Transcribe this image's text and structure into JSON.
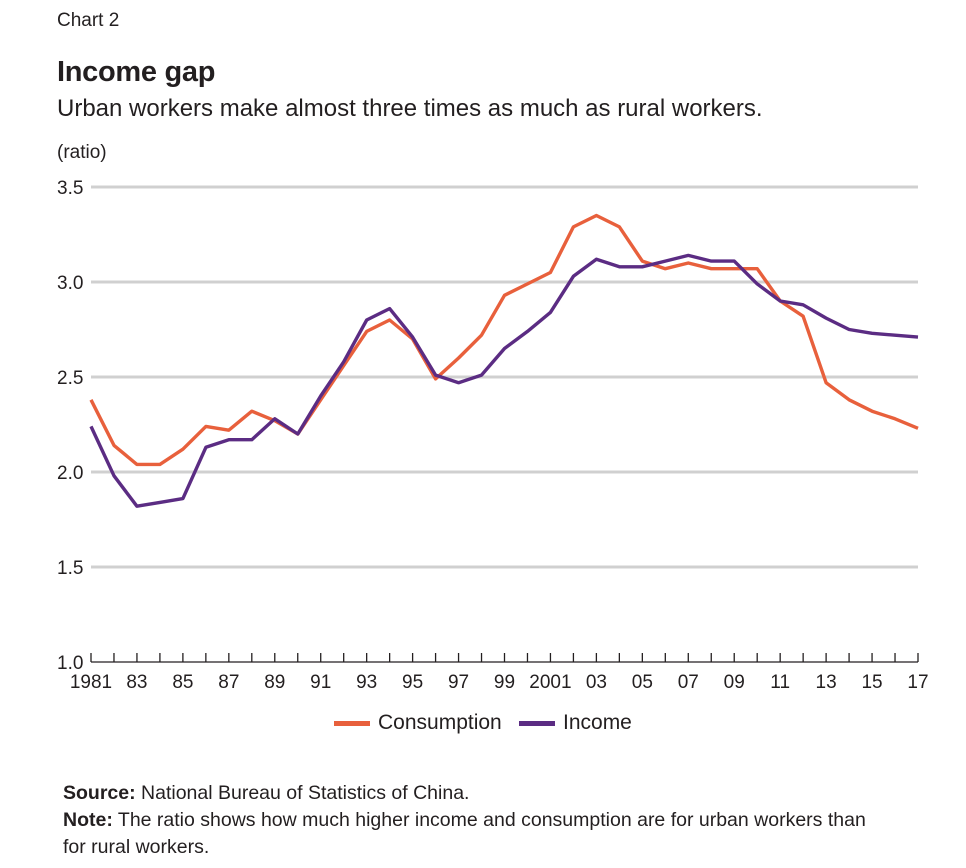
{
  "header": {
    "chart_label": "Chart 2",
    "title": "Income gap",
    "subtitle": "Urban workers make almost three times as much as rural workers.",
    "unit": "(ratio)"
  },
  "colors": {
    "consumption": "#e8603c",
    "income": "#5b2c83",
    "grid": "#d0d0d0",
    "text": "#231f20"
  },
  "chart_data": {
    "type": "line",
    "title": "Income gap",
    "ylabel": "(ratio)",
    "ylim": [
      1.0,
      3.5
    ],
    "yticks": [
      1.0,
      1.5,
      2.0,
      2.5,
      3.0,
      3.5
    ],
    "ytick_labels": [
      "1.0",
      "1.5",
      "2.0",
      "2.5",
      "3.0",
      "3.5"
    ],
    "grid": true,
    "legend_position": "bottom-center",
    "x": [
      1981,
      1982,
      1983,
      1984,
      1985,
      1986,
      1987,
      1988,
      1989,
      1990,
      1991,
      1992,
      1993,
      1994,
      1995,
      1996,
      1997,
      1998,
      1999,
      2000,
      2001,
      2002,
      2003,
      2004,
      2005,
      2006,
      2007,
      2008,
      2009,
      2010,
      2011,
      2012,
      2013,
      2014,
      2015,
      2016,
      2017
    ],
    "xtick_labels": [
      {
        "year": 1981,
        "label": "1981"
      },
      {
        "year": 1983,
        "label": "83"
      },
      {
        "year": 1985,
        "label": "85"
      },
      {
        "year": 1987,
        "label": "87"
      },
      {
        "year": 1989,
        "label": "89"
      },
      {
        "year": 1991,
        "label": "91"
      },
      {
        "year": 1993,
        "label": "93"
      },
      {
        "year": 1995,
        "label": "95"
      },
      {
        "year": 1997,
        "label": "97"
      },
      {
        "year": 1999,
        "label": "99"
      },
      {
        "year": 2001,
        "label": "2001"
      },
      {
        "year": 2003,
        "label": "03"
      },
      {
        "year": 2005,
        "label": "05"
      },
      {
        "year": 2007,
        "label": "07"
      },
      {
        "year": 2009,
        "label": "09"
      },
      {
        "year": 2011,
        "label": "11"
      },
      {
        "year": 2013,
        "label": "13"
      },
      {
        "year": 2015,
        "label": "15"
      },
      {
        "year": 2017,
        "label": "17"
      }
    ],
    "series": [
      {
        "name": "Consumption",
        "color": "#e8603c",
        "values": [
          2.38,
          2.14,
          2.04,
          2.04,
          2.12,
          2.24,
          2.22,
          2.32,
          2.27,
          2.2,
          2.38,
          2.56,
          2.74,
          2.8,
          2.7,
          2.49,
          2.6,
          2.72,
          2.93,
          2.99,
          3.05,
          3.29,
          3.35,
          3.29,
          3.11,
          3.07,
          3.1,
          3.07,
          3.07,
          3.07,
          2.9,
          2.82,
          2.47,
          2.38,
          2.32,
          2.28,
          2.23
        ]
      },
      {
        "name": "Income",
        "color": "#5b2c83",
        "values": [
          2.24,
          1.98,
          1.82,
          1.84,
          1.86,
          2.13,
          2.17,
          2.17,
          2.28,
          2.2,
          2.4,
          2.58,
          2.8,
          2.86,
          2.71,
          2.51,
          2.47,
          2.51,
          2.65,
          2.74,
          2.84,
          3.03,
          3.12,
          3.08,
          3.08,
          3.11,
          3.14,
          3.11,
          3.11,
          2.99,
          2.9,
          2.88,
          2.81,
          2.75,
          2.73,
          2.72,
          2.71
        ]
      }
    ]
  },
  "legend": {
    "items": [
      {
        "label": "Consumption"
      },
      {
        "label": "Income"
      }
    ]
  },
  "footer": {
    "source_label": "Source:",
    "source_text": "National Bureau of Statistics of China.",
    "note_label": "Note:",
    "note_text": "The ratio shows how much higher income and consumption are for urban workers than for rural workers."
  }
}
